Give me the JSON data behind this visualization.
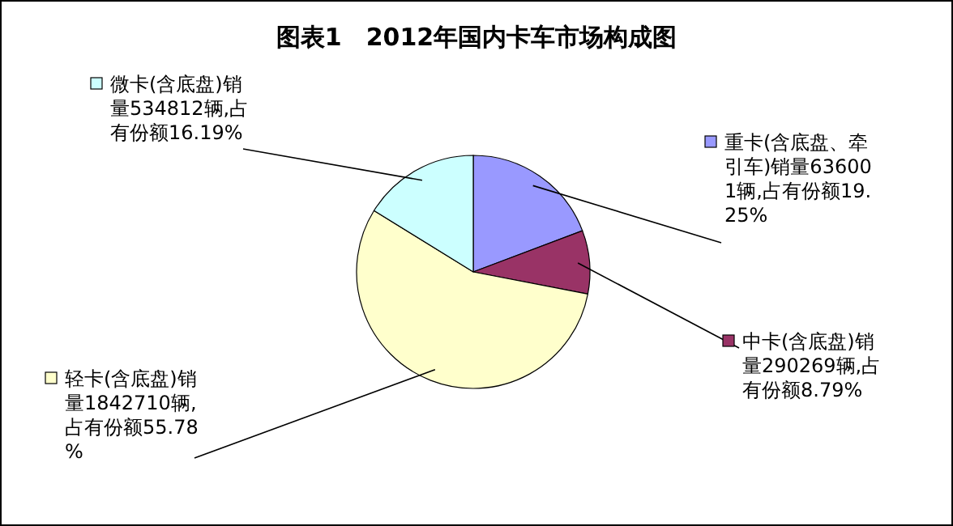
{
  "chart_data": {
    "type": "pie",
    "title": "图表1　2012年国内卡车市场构成图",
    "categories": [
      "重卡(含底盘、牵引车)",
      "中卡(含底盘)",
      "轻卡(含底盘)",
      "微卡(含底盘)"
    ],
    "values": [
      636001,
      290269,
      1842710,
      534812
    ],
    "colors": [
      "#9999ff",
      "#993366",
      "#ffffcc",
      "#ccffff"
    ],
    "value_labels": [
      "销量636001辆,占有份额19.25%",
      "销量290269辆,占有份额8.79%",
      "销量1842710辆,占有份额55.78%",
      "销量534812辆,占有份额16.19%"
    ],
    "legend": "right"
  }
}
